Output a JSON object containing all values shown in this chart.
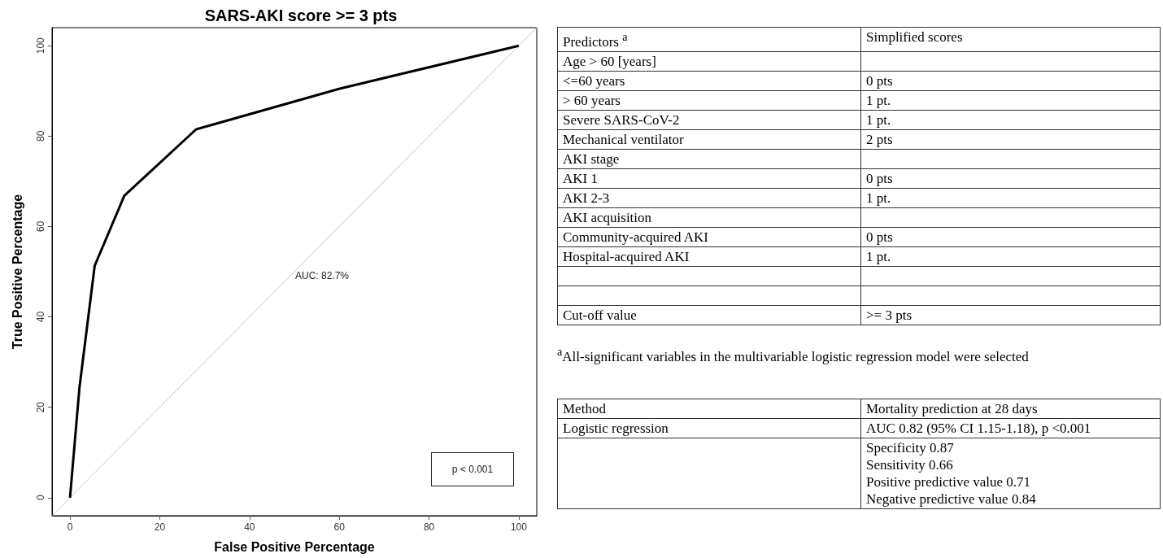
{
  "chart_data": [
    {
      "type": "line",
      "title": "SARS-AKI score >= 3 pts",
      "xlabel": "False Positive Percentage",
      "ylabel": "True Positive Percentage",
      "series": [
        {
          "type": "line",
          "color": "#000000",
          "x": [
            0,
            2.1,
            5.5,
            12.1,
            28.1,
            60.1,
            100
          ],
          "values": [
            0,
            24.3,
            51.3,
            66.8,
            81.5,
            90.5,
            100
          ]
        },
        {
          "type": "line",
          "color": "#c8c8c8",
          "x": [
            -4,
            104
          ],
          "values": [
            -4,
            104
          ]
        }
      ],
      "xlim": [
        -4,
        104
      ],
      "ylim": [
        -4,
        104
      ],
      "xticks": [
        0,
        20,
        40,
        60,
        80,
        100
      ],
      "yticks": [
        0,
        20,
        40,
        60,
        80,
        100
      ],
      "grid": false,
      "marker": "none",
      "line_style": "solid",
      "annotations": [
        "AUC: 82.7%",
        "p < 0.001"
      ]
    },
    {
      "type": "other",
      "categories": [
        "Predictors $^{a}$",
        "Age > 60 [years]",
        "<=60 years",
        "> 60 years",
        "Severe SARS-CoV-2",
        "Mechanical ventilator",
        "AKI stage",
        "AKI 1",
        "AKI 2-3",
        "AKI acquisition",
        "Community-acquired AKI",
        "Hospital-acquired AKI",
        null,
        null,
        "Cut-off value"
      ],
      "value_labels": [
        "Simplified scores",
        null,
        "0 pts",
        "1 pt.",
        "1 pt.",
        "2 pts",
        null,
        "0 pts",
        "1 pt.",
        null,
        "0 pts",
        "1 pt.",
        null,
        null,
        ">= 3 pts"
      ],
      "annotations": [
        "$^{a}$All-significant variables in the multivariable logistic regression model were selected"
      ]
    },
    {
      "type": "other",
      "categories": [
        "Method",
        "Logistic regression",
        null
      ],
      "value_labels": [
        "Mortality prediction at 28 days",
        "AUC 0.82 (95% CI 1.15-1.18), p <0.001",
        "Specificity 0.87\nSensitivity 0.66\nPositive predictive value 0.71\nNegative predictive value 0.84"
      ]
    }
  ]
}
